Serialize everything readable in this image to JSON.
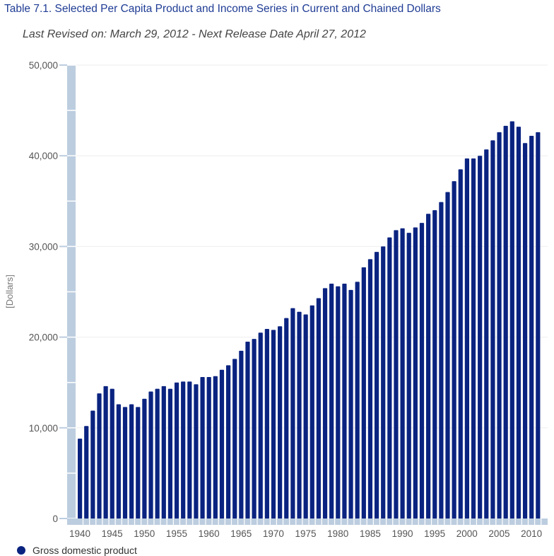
{
  "chart_data": {
    "type": "bar",
    "title": "Table 7.1. Selected Per Capita Product and Income Series in Current and Chained Dollars",
    "subtitle": "Last Revised on: March 29, 2012 - Next Release Date April 27, 2012",
    "xlabel": "",
    "ylabel": "[Dollars]",
    "ylim": [
      0,
      50000
    ],
    "yticks": [
      0,
      10000,
      20000,
      30000,
      40000,
      50000
    ],
    "ytick_labels": [
      "0",
      "10,000",
      "20,000",
      "30,000",
      "40,000",
      "50,000"
    ],
    "xtick_labels": [
      "1940",
      "1945",
      "1950",
      "1955",
      "1960",
      "1965",
      "1970",
      "1975",
      "1980",
      "1985",
      "1990",
      "1995",
      "2000",
      "2005",
      "2010"
    ],
    "grid": true,
    "legend_position": "bottom-left",
    "colors": {
      "bar": "#0a2380",
      "axis": "#bccddf"
    },
    "series": [
      {
        "name": "Gross domestic product",
        "x": [
          1940,
          1941,
          1942,
          1943,
          1944,
          1945,
          1946,
          1947,
          1948,
          1949,
          1950,
          1951,
          1952,
          1953,
          1954,
          1955,
          1956,
          1957,
          1958,
          1959,
          1960,
          1961,
          1962,
          1963,
          1964,
          1965,
          1966,
          1967,
          1968,
          1969,
          1970,
          1971,
          1972,
          1973,
          1974,
          1975,
          1976,
          1977,
          1978,
          1979,
          1980,
          1981,
          1982,
          1983,
          1984,
          1985,
          1986,
          1987,
          1988,
          1989,
          1990,
          1991,
          1992,
          1993,
          1994,
          1995,
          1996,
          1997,
          1998,
          1999,
          2000,
          2001,
          2002,
          2003,
          2004,
          2005,
          2006,
          2007,
          2008,
          2009,
          2010,
          2011
        ],
        "values": [
          8800,
          10200,
          11900,
          13800,
          14600,
          14300,
          12600,
          12300,
          12600,
          12300,
          13200,
          14000,
          14300,
          14600,
          14300,
          15000,
          15100,
          15100,
          14800,
          15600,
          15600,
          15700,
          16400,
          16900,
          17600,
          18500,
          19500,
          19800,
          20500,
          20900,
          20800,
          21200,
          22100,
          23200,
          22800,
          22500,
          23500,
          24300,
          25400,
          25900,
          25600,
          25900,
          25200,
          26100,
          27700,
          28600,
          29400,
          30000,
          31000,
          31800,
          32000,
          31500,
          32100,
          32600,
          33600,
          34000,
          34900,
          36000,
          37200,
          38500,
          39700,
          39700,
          40000,
          40700,
          41700,
          42600,
          43300,
          43800,
          43200,
          41400,
          42200,
          42600
        ]
      }
    ]
  }
}
